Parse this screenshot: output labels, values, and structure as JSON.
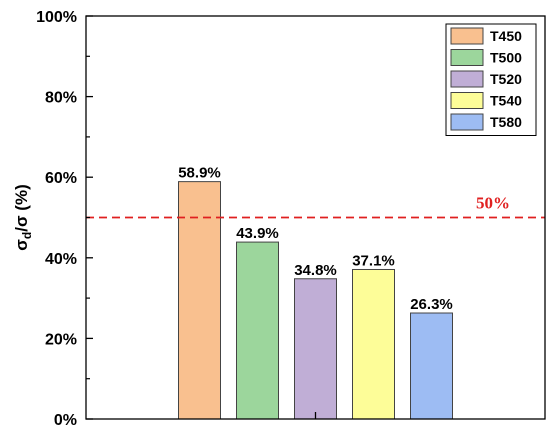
{
  "chart_data": {
    "type": "bar",
    "categories": [
      "T450",
      "T500",
      "T520",
      "T540",
      "T580"
    ],
    "values": [
      58.9,
      43.9,
      34.8,
      37.1,
      26.3
    ],
    "data_labels": [
      "58.9%",
      "43.9%",
      "34.8%",
      "37.1%",
      "26.3%"
    ],
    "colors": [
      "#f9c08f",
      "#9cd69c",
      "#c0aed6",
      "#fdfd98",
      "#9dbcf3"
    ],
    "ylabel": {
      "main": "σ",
      "sub": "d",
      "rest": "/σ (%)"
    },
    "ylim": [
      0,
      100
    ],
    "yticks": [
      0,
      20,
      40,
      60,
      80,
      100
    ],
    "ytick_labels": [
      "0%",
      "20%",
      "40%",
      "60%",
      "80%",
      "100%"
    ],
    "legend_position": "top-right",
    "reference_line": {
      "value": 50,
      "label": "50%",
      "color": "#e02020",
      "style": "dashed"
    },
    "grid": false
  }
}
